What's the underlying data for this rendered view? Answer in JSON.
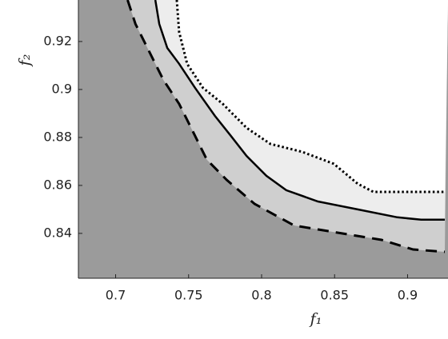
{
  "chart_data": {
    "type": "line",
    "x_label": "f₁",
    "y_label": "f₂",
    "xlim": [
      0.6745,
      0.9277
    ],
    "ylim": [
      0.8213,
      0.9373
    ],
    "xticks": [
      0.7,
      0.75,
      0.8,
      0.85,
      0.9
    ],
    "yticks": [
      0.84,
      0.86,
      0.88,
      0.9,
      0.92
    ],
    "background": "#9b9b9b",
    "series": [
      {
        "color": "#000000",
        "dash": "dashed",
        "fill": "#cfcfcf",
        "x": [
          0.7082,
          0.7136,
          0.7218,
          0.7327,
          0.7435,
          0.7517,
          0.7625,
          0.7761,
          0.7952,
          0.8223,
          0.855,
          0.8821,
          0.9038,
          0.9255
        ],
        "values": [
          0.9373,
          0.9273,
          0.9173,
          0.904,
          0.894,
          0.884,
          0.8707,
          0.8623,
          0.8523,
          0.8433,
          0.84,
          0.8373,
          0.8333,
          0.8323
        ]
      },
      {
        "color": "#000000",
        "dash": "solid",
        "fill": "#ededed",
        "x": [
          0.7272,
          0.7299,
          0.7354,
          0.7435,
          0.7544,
          0.768,
          0.7789,
          0.7897,
          0.8033,
          0.8169,
          0.8386,
          0.8658,
          0.893,
          0.9093,
          0.9255
        ],
        "values": [
          0.9373,
          0.9273,
          0.9173,
          0.9107,
          0.9007,
          0.889,
          0.8807,
          0.8723,
          0.864,
          0.858,
          0.8533,
          0.85,
          0.8467,
          0.8457,
          0.8457
        ]
      },
      {
        "color": "#000000",
        "dash": "dotted",
        "fill": "#ffffff",
        "x": [
          0.7419,
          0.7435,
          0.749,
          0.7598,
          0.7734,
          0.7897,
          0.806,
          0.8278,
          0.8495,
          0.8658,
          0.8766,
          0.9255
        ],
        "values": [
          0.9373,
          0.924,
          0.9107,
          0.9007,
          0.894,
          0.884,
          0.8773,
          0.874,
          0.869,
          0.8607,
          0.8573,
          0.8573
        ]
      }
    ]
  }
}
